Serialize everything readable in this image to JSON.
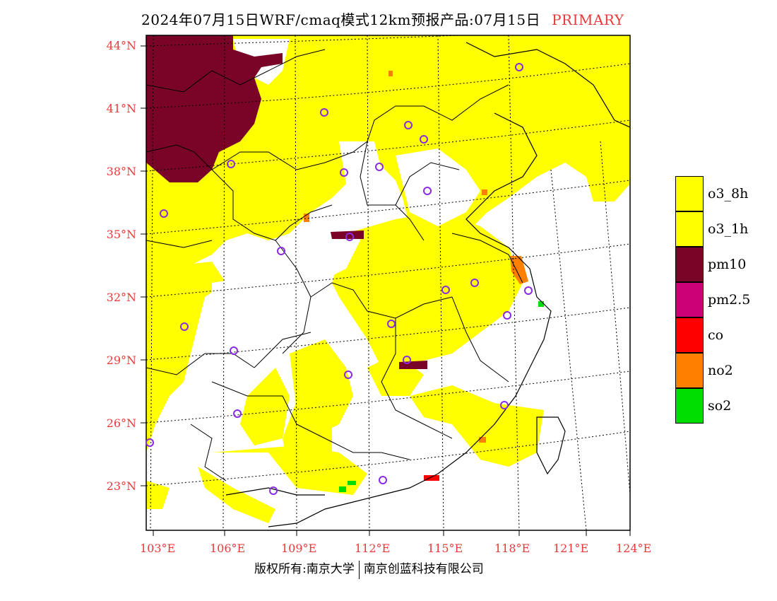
{
  "title": {
    "main": "2024年07月15日WRF/cmaq模式12km预报产品:07月15日",
    "tag": "PRIMARY"
  },
  "axes": {
    "latitudes": [
      "44°N",
      "41°N",
      "38°N",
      "35°N",
      "32°N",
      "29°N",
      "26°N",
      "23°N"
    ],
    "longitudes": [
      "103°E",
      "106°E",
      "109°E",
      "112°E",
      "115°E",
      "118°E",
      "121°E",
      "124°E"
    ]
  },
  "legend": {
    "items": [
      {
        "label": "o3_8h",
        "color": "#ffff00"
      },
      {
        "label": "o3_1h",
        "color": "#ffff00"
      },
      {
        "label": "pm10",
        "color": "#7a0428"
      },
      {
        "label": "pm2.5",
        "color": "#cc0077"
      },
      {
        "label": "co",
        "color": "#ff0000"
      },
      {
        "label": "no2",
        "color": "#ff7f00"
      },
      {
        "label": "so2",
        "color": "#00dd00"
      }
    ]
  },
  "colors": {
    "o3": "#ffff00",
    "pm10": "#7a0428",
    "no2": "#ff7f00",
    "co": "#ff0000",
    "so2": "#00dd00",
    "station_marker": "#8a2be2",
    "axis_label": "#e83a3a"
  },
  "copyright": {
    "left": "版权所有:南京大学",
    "right": "南京创蓝科技有限公司"
  }
}
